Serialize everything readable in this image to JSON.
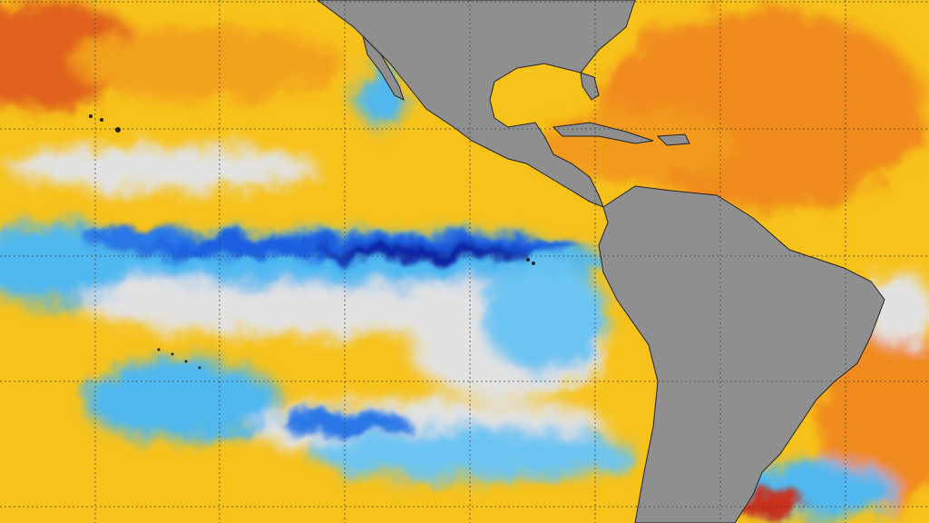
{
  "map": {
    "colors": {
      "ocean_warm": "#f7c21a",
      "ocean_hot": "#f08a1c",
      "ocean_very_hot": "#d9461a",
      "ocean_neutral": "#e2e2e2",
      "ocean_cool": "#4fb8f0",
      "ocean_cold": "#1e5fe0",
      "ocean_very_cold": "#0b1fa0",
      "land": "#8f8f8f",
      "coastline": "#222222",
      "grid": "#444444"
    },
    "graticule": "dotted"
  }
}
